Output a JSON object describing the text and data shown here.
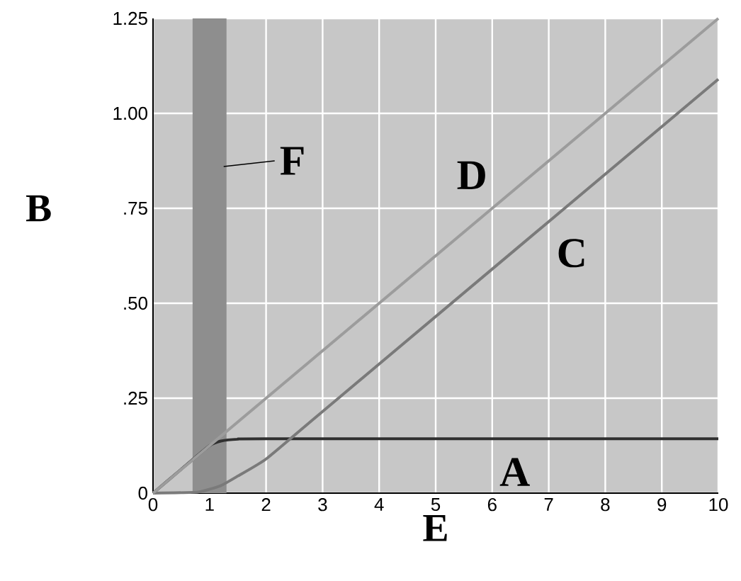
{
  "chart_data": {
    "type": "line",
    "xlabel": "E",
    "ylabel": "B",
    "xlim": [
      0,
      10
    ],
    "ylim": [
      0,
      1.25
    ],
    "xticks": [
      0,
      1,
      2,
      3,
      4,
      5,
      6,
      7,
      8,
      9,
      10
    ],
    "yticks": [
      0,
      {
        "value": 0.25,
        "label": ".25"
      },
      {
        "value": 0.5,
        "label": ".50"
      },
      {
        "value": 0.75,
        "label": ".75"
      },
      {
        "value": 1.0,
        "label": "1.00"
      },
      {
        "value": 1.25,
        "label": "1.25"
      }
    ],
    "grid": true,
    "series": [
      {
        "name": "A",
        "color": "#303030",
        "x": [
          0,
          0.5,
          1,
          1.2,
          1.5,
          2,
          10
        ],
        "values": [
          0,
          0.063,
          0.125,
          0.137,
          0.142,
          0.143,
          0.143
        ]
      },
      {
        "name": "C",
        "color": "#7a7a7a",
        "x": [
          0,
          0.8,
          1.2,
          1.5,
          2,
          3,
          10
        ],
        "values": [
          0,
          0.003,
          0.02,
          0.045,
          0.09,
          0.215,
          1.09
        ]
      },
      {
        "name": "D",
        "color": "#9c9c9c",
        "x": [
          0,
          10
        ],
        "values": [
          0,
          1.25
        ]
      }
    ],
    "bands": [
      {
        "axis": "x",
        "from": 0.7,
        "to": 1.3,
        "color": "#8e8e8e",
        "label": "F"
      }
    ]
  }
}
